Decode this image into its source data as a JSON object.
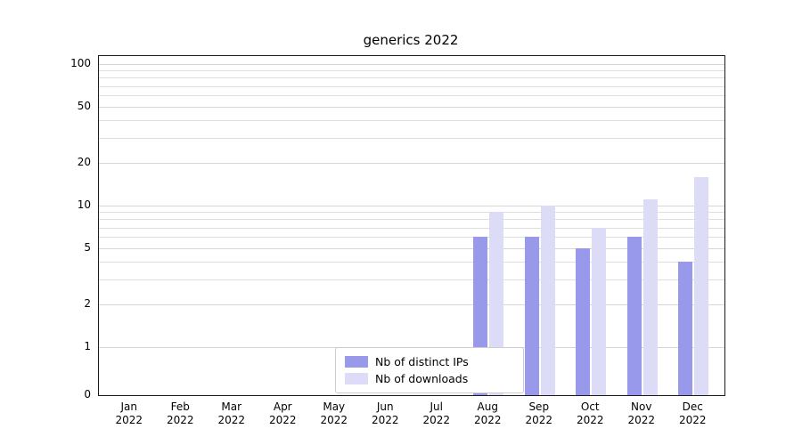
{
  "chart_data": {
    "type": "bar",
    "title": "generics 2022",
    "categories": [
      "Jan",
      "Feb",
      "Mar",
      "Apr",
      "May",
      "Jun",
      "Jul",
      "Aug",
      "Sep",
      "Oct",
      "Nov",
      "Dec"
    ],
    "category_year": "2022",
    "series": [
      {
        "name": "Nb of distinct IPs",
        "color": "#9999ec",
        "values": [
          0,
          0,
          0,
          0,
          0,
          0,
          0,
          6,
          6,
          5,
          6,
          4
        ]
      },
      {
        "name": "Nb of downloads",
        "color": "#dcdcf7",
        "values": [
          0,
          0,
          0,
          0,
          0,
          0,
          0,
          9,
          10,
          7,
          11,
          16
        ]
      }
    ],
    "xlabel": "",
    "ylabel": "",
    "yscale": "symlog",
    "y_ticks": [
      0,
      1,
      2,
      5,
      10,
      20,
      50,
      100
    ],
    "minor_gridlines": [
      3,
      4,
      6,
      7,
      8,
      9,
      30,
      40,
      60,
      70,
      80,
      90
    ],
    "ylim": [
      0,
      115
    ],
    "grid": true,
    "legend_position": "lower center"
  }
}
